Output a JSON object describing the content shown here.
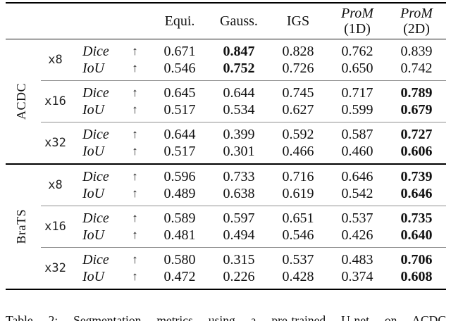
{
  "table": {
    "arrow": "↑",
    "header": {
      "col1": "Equi.",
      "col2": "Gauss.",
      "col3": "IGS",
      "col4_line1": "ProM",
      "col4_line2": "(1D)",
      "col5_line1": "ProM",
      "col5_line2": "(2D)"
    },
    "sections": [
      {
        "dataset": "ACDC",
        "blocks": [
          {
            "scale": "x8",
            "rows": [
              {
                "metric": "Dice",
                "values": [
                  "0.671",
                  "0.847",
                  "0.828",
                  "0.762",
                  "0.839"
                ],
                "bold_value_index": 1
              },
              {
                "metric": "IoU",
                "values": [
                  "0.546",
                  "0.752",
                  "0.726",
                  "0.650",
                  "0.742"
                ],
                "bold_value_index": 1
              }
            ]
          },
          {
            "scale": "x16",
            "rows": [
              {
                "metric": "Dice",
                "values": [
                  "0.645",
                  "0.644",
                  "0.745",
                  "0.717",
                  "0.789"
                ],
                "bold_value_index": 4
              },
              {
                "metric": "IoU",
                "values": [
                  "0.517",
                  "0.534",
                  "0.627",
                  "0.599",
                  "0.679"
                ],
                "bold_value_index": 4
              }
            ]
          },
          {
            "scale": "x32",
            "rows": [
              {
                "metric": "Dice",
                "values": [
                  "0.644",
                  "0.399",
                  "0.592",
                  "0.587",
                  "0.727"
                ],
                "bold_value_index": 4
              },
              {
                "metric": "IoU",
                "values": [
                  "0.517",
                  "0.301",
                  "0.466",
                  "0.460",
                  "0.606"
                ],
                "bold_value_index": 4
              }
            ]
          }
        ]
      },
      {
        "dataset": "BraTS",
        "blocks": [
          {
            "scale": "x8",
            "rows": [
              {
                "metric": "Dice",
                "values": [
                  "0.596",
                  "0.733",
                  "0.716",
                  "0.646",
                  "0.739"
                ],
                "bold_value_index": 4
              },
              {
                "metric": "IoU",
                "values": [
                  "0.489",
                  "0.638",
                  "0.619",
                  "0.542",
                  "0.646"
                ],
                "bold_value_index": 4
              }
            ]
          },
          {
            "scale": "x16",
            "rows": [
              {
                "metric": "Dice",
                "values": [
                  "0.589",
                  "0.597",
                  "0.651",
                  "0.537",
                  "0.735"
                ],
                "bold_value_index": 4
              },
              {
                "metric": "IoU",
                "values": [
                  "0.481",
                  "0.494",
                  "0.546",
                  "0.426",
                  "0.640"
                ],
                "bold_value_index": 4
              }
            ]
          },
          {
            "scale": "x32",
            "rows": [
              {
                "metric": "Dice",
                "values": [
                  "0.580",
                  "0.315",
                  "0.537",
                  "0.483",
                  "0.706"
                ],
                "bold_value_index": 4
              },
              {
                "metric": "IoU",
                "values": [
                  "0.472",
                  "0.226",
                  "0.428",
                  "0.374",
                  "0.608"
                ],
                "bold_value_index": 4
              }
            ]
          }
        ]
      }
    ]
  },
  "caption": "Table 2: Segmentation metrics using a pre-trained U-net on ACDC"
}
